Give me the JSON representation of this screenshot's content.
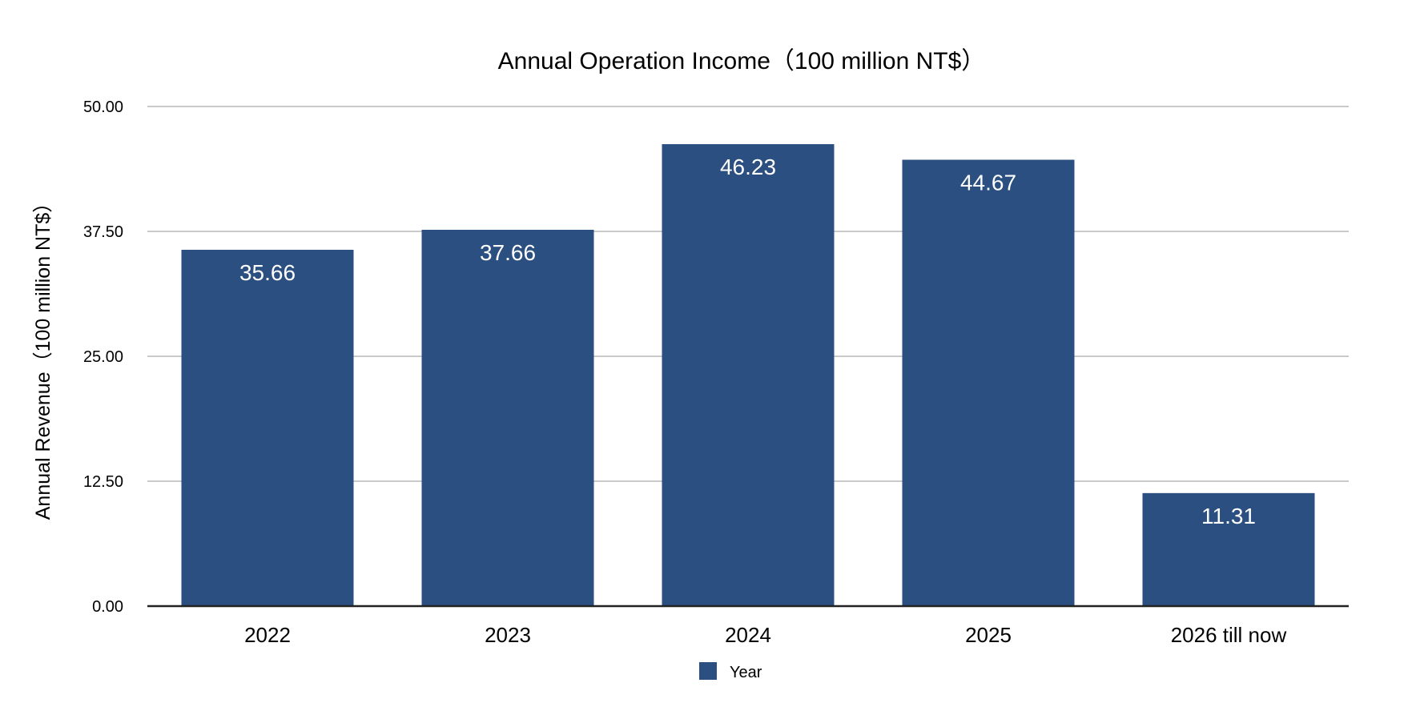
{
  "chart_data": {
    "type": "bar",
    "title": "Annual Operation Income（100 million NT$）",
    "xlabel": "",
    "ylabel": "Annual Revenue（100 million NT$）",
    "categories": [
      "2022",
      "2023",
      "2024",
      "2025",
      "2026 till now"
    ],
    "series": [
      {
        "name": "Year",
        "values": [
          35.66,
          37.66,
          46.23,
          44.67,
          11.31
        ],
        "color": "#2a4f80"
      }
    ],
    "data_labels": [
      "35.66",
      "37.66",
      "46.23",
      "44.67",
      "11.31"
    ],
    "ylim": [
      0,
      50
    ],
    "yticks": [
      0,
      12.5,
      25,
      37.5,
      50
    ],
    "ytick_labels": [
      "0.00",
      "12.50",
      "25.00",
      "37.50",
      "50.00"
    ],
    "grid": true,
    "legend_position": "bottom"
  }
}
